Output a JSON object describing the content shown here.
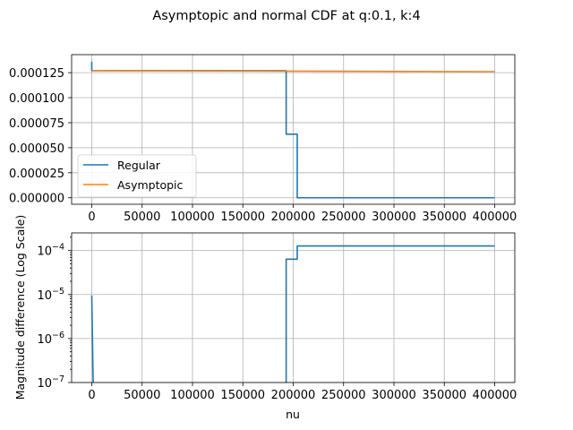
{
  "chart_data": {
    "title": "Asymptopic and normal CDF at q:0.1, k:4",
    "colors": {
      "regular": "#1f77b4",
      "asymptopic": "#ff7f0e"
    },
    "panels": [
      {
        "type": "line",
        "xlabel": "",
        "ylabel": "",
        "xlim": [
          -20000,
          420000
        ],
        "ylim": [
          -6.5e-06,
          0.000143
        ],
        "yscale": "linear",
        "grid": true,
        "legend_position": "lower-left",
        "xticks": [
          0,
          50000,
          100000,
          150000,
          200000,
          250000,
          300000,
          350000,
          400000
        ],
        "xtick_labels": [
          "0",
          "50000",
          "100000",
          "150000",
          "200000",
          "250000",
          "300000",
          "350000",
          "400000"
        ],
        "yticks": [
          0,
          2.5e-05,
          5e-05,
          7.5e-05,
          0.0001,
          0.000125
        ],
        "ytick_labels": [
          "0.000000",
          "0.000025",
          "0.000050",
          "0.000075",
          "0.000100",
          "0.000125"
        ],
        "series": [
          {
            "name": "Regular",
            "color": "#1f77b4",
            "x": [
              0,
              0,
              2000,
              193000,
              193000,
              204000,
              204000,
              400000
            ],
            "y": [
              0.000136,
              0.000127,
              0.000127,
              0.000127,
              6.35e-05,
              6.35e-05,
              0,
              0
            ]
          },
          {
            "name": "Asymptopic",
            "color": "#ff7f0e",
            "x": [
              0,
              400000
            ],
            "y": [
              0.000127,
              0.000126
            ]
          }
        ]
      },
      {
        "type": "line",
        "xlabel": "nu",
        "ylabel": "Magnitude difference (Log Scale)",
        "xlim": [
          -20000,
          420000
        ],
        "ylim_log10": [
          -7,
          -3.6
        ],
        "yscale": "log",
        "grid": true,
        "xticks": [
          0,
          50000,
          100000,
          150000,
          200000,
          250000,
          300000,
          350000,
          400000
        ],
        "xtick_labels": [
          "0",
          "50000",
          "100000",
          "150000",
          "200000",
          "250000",
          "300000",
          "350000",
          "400000"
        ],
        "ytick_exponents": [
          -7,
          -6,
          -5,
          -4
        ],
        "ytick_base": "10",
        "series": [
          {
            "name": "Regular",
            "color": "#1f77b4",
            "x": [
              0,
              500,
              1000,
              1400
            ],
            "y": [
              9.5e-06,
              2e-06,
              3e-07,
              1e-07
            ]
          },
          {
            "name": "Regular",
            "color": "#1f77b4",
            "x": [
              193000,
              193000,
              204000,
              204000,
              400000
            ],
            "y": [
              1e-07,
              6.35e-05,
              6.35e-05,
              0.000127,
              0.000127
            ]
          }
        ]
      }
    ]
  }
}
